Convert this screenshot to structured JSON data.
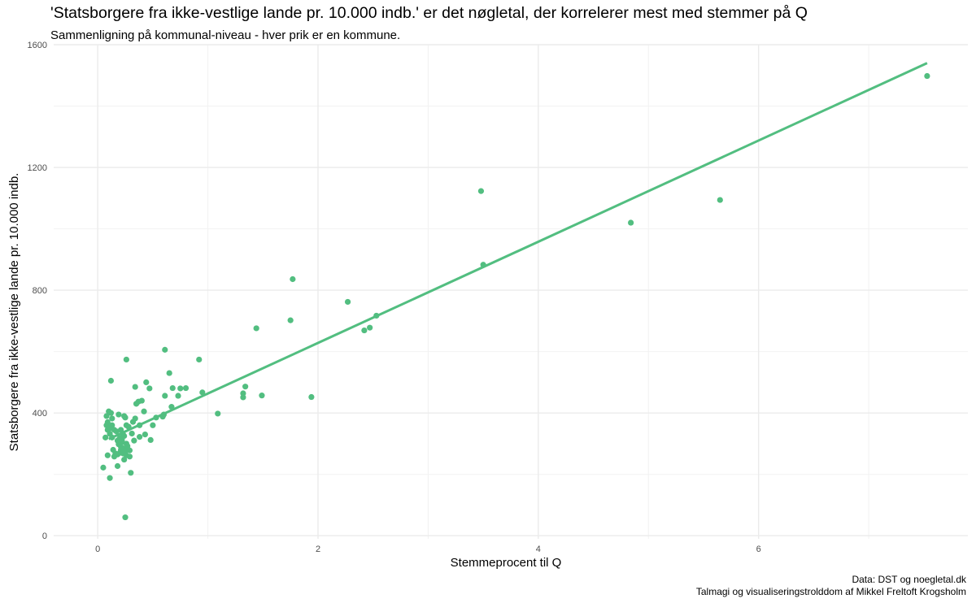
{
  "chart_data": {
    "type": "scatter",
    "title": "'Statsborgere fra ikke-vestlige lande pr. 10.000 indb.' er det nøgletal, der korrelerer mest med stemmer på Q",
    "subtitle": "Sammenligning på kommunal-niveau - hver prik er en kommune.",
    "xlabel": "Stemmeprocent til Q",
    "ylabel": "Statsborgere fra ikke-vestlige lande pr. 10.000 indb.",
    "xlim": [
      -0.4,
      7.9
    ],
    "ylim": [
      -10,
      1600
    ],
    "x_ticks": [
      0,
      2,
      4,
      6
    ],
    "x_tick_labels": [
      "0",
      "2",
      "4",
      "6"
    ],
    "y_ticks": [
      0,
      400,
      800,
      1200,
      1600
    ],
    "y_tick_labels": [
      "0",
      "400",
      "800",
      "1200",
      "1600"
    ],
    "grid": true,
    "point_color": "#52BE80",
    "line_color": "#52BE80",
    "trendline": {
      "x": [
        0.1,
        7.53
      ],
      "y": [
        315,
        1540
      ]
    },
    "points": [
      [
        7.53,
        1498
      ],
      [
        5.65,
        1094
      ],
      [
        4.84,
        1020
      ],
      [
        3.48,
        1123
      ],
      [
        3.5,
        883
      ],
      [
        1.77,
        836
      ],
      [
        2.27,
        762
      ],
      [
        1.75,
        702
      ],
      [
        1.44,
        676
      ],
      [
        2.53,
        717
      ],
      [
        2.47,
        678
      ],
      [
        2.42,
        669
      ],
      [
        1.94,
        452
      ],
      [
        1.49,
        457
      ],
      [
        1.34,
        486
      ],
      [
        1.32,
        464
      ],
      [
        1.32,
        451
      ],
      [
        1.09,
        398
      ],
      [
        0.95,
        467
      ],
      [
        0.92,
        574
      ],
      [
        0.65,
        530
      ],
      [
        0.61,
        606
      ],
      [
        0.68,
        481
      ],
      [
        0.8,
        481
      ],
      [
        0.73,
        456
      ],
      [
        0.75,
        480
      ],
      [
        0.61,
        456
      ],
      [
        0.67,
        420
      ],
      [
        0.6,
        395
      ],
      [
        0.59,
        388
      ],
      [
        0.53,
        385
      ],
      [
        0.5,
        360
      ],
      [
        0.47,
        480
      ],
      [
        0.44,
        500
      ],
      [
        0.4,
        440
      ],
      [
        0.37,
        437
      ],
      [
        0.35,
        430
      ],
      [
        0.34,
        485
      ],
      [
        0.42,
        405
      ],
      [
        0.38,
        360
      ],
      [
        0.34,
        382
      ],
      [
        0.32,
        371
      ],
      [
        0.43,
        330
      ],
      [
        0.38,
        322
      ],
      [
        0.48,
        312
      ],
      [
        0.33,
        310
      ],
      [
        0.31,
        333
      ],
      [
        0.28,
        355
      ],
      [
        0.26,
        360
      ],
      [
        0.25,
        385
      ],
      [
        0.24,
        390
      ],
      [
        0.26,
        574
      ],
      [
        0.12,
        505
      ],
      [
        0.08,
        390
      ],
      [
        0.1,
        405
      ],
      [
        0.12,
        400
      ],
      [
        0.13,
        382
      ],
      [
        0.09,
        370
      ],
      [
        0.08,
        360
      ],
      [
        0.13,
        360
      ],
      [
        0.19,
        395
      ],
      [
        0.11,
        350
      ],
      [
        0.15,
        345
      ],
      [
        0.17,
        340
      ],
      [
        0.21,
        345
      ],
      [
        0.23,
        330
      ],
      [
        0.24,
        325
      ],
      [
        0.2,
        318
      ],
      [
        0.18,
        310
      ],
      [
        0.22,
        305
      ],
      [
        0.26,
        300
      ],
      [
        0.19,
        298
      ],
      [
        0.21,
        290
      ],
      [
        0.23,
        285
      ],
      [
        0.27,
        280
      ],
      [
        0.29,
        278
      ],
      [
        0.24,
        275
      ],
      [
        0.2,
        270
      ],
      [
        0.18,
        265
      ],
      [
        0.26,
        262
      ],
      [
        0.29,
        258
      ],
      [
        0.23,
        268
      ],
      [
        0.09,
        345
      ],
      [
        0.11,
        332
      ],
      [
        0.07,
        320
      ],
      [
        0.13,
        320
      ],
      [
        0.09,
        262
      ],
      [
        0.15,
        258
      ],
      [
        0.18,
        227
      ],
      [
        0.05,
        222
      ],
      [
        0.3,
        205
      ],
      [
        0.11,
        188
      ],
      [
        0.25,
        60
      ],
      [
        0.2,
        302
      ],
      [
        0.22,
        312
      ],
      [
        0.27,
        292
      ],
      [
        0.21,
        280
      ],
      [
        0.14,
        280
      ],
      [
        0.16,
        268
      ],
      [
        0.24,
        248
      ]
    ]
  },
  "caption": {
    "line1": "Data: DST og noegletal.dk",
    "line2": "Talmagi og visualiseringstrolddom af Mikkel Freltoft Krogsholm"
  }
}
